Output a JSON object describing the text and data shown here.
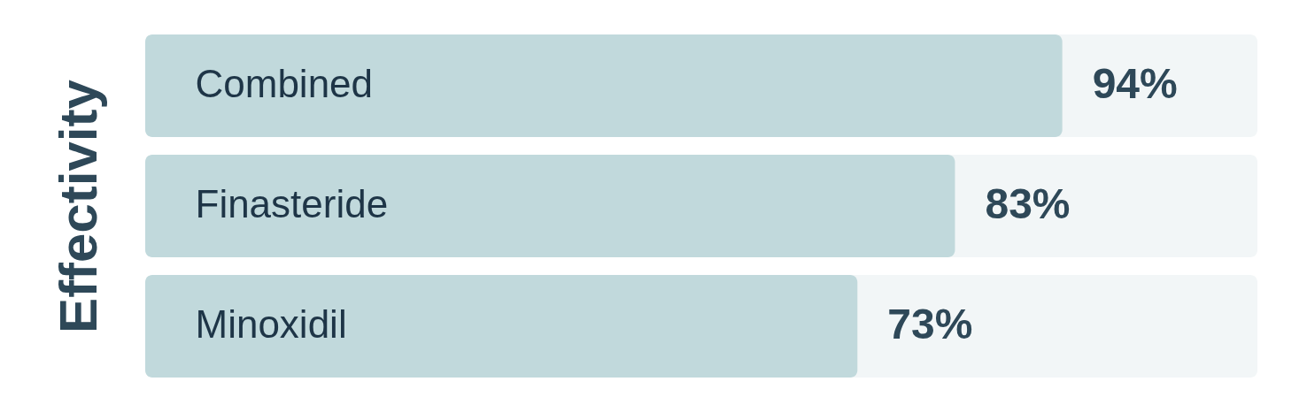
{
  "chart_data": {
    "type": "bar",
    "orientation": "horizontal",
    "ylabel": "Effectivity",
    "categories": [
      "Combined",
      "Finasteride",
      "Minoxidil"
    ],
    "values": [
      94,
      83,
      73
    ],
    "color": "#c1d9dc",
    "value_labels": [
      "94%",
      "83%",
      "73%"
    ],
    "xlim": [
      0,
      114
    ],
    "tick_labels": "y"
  }
}
